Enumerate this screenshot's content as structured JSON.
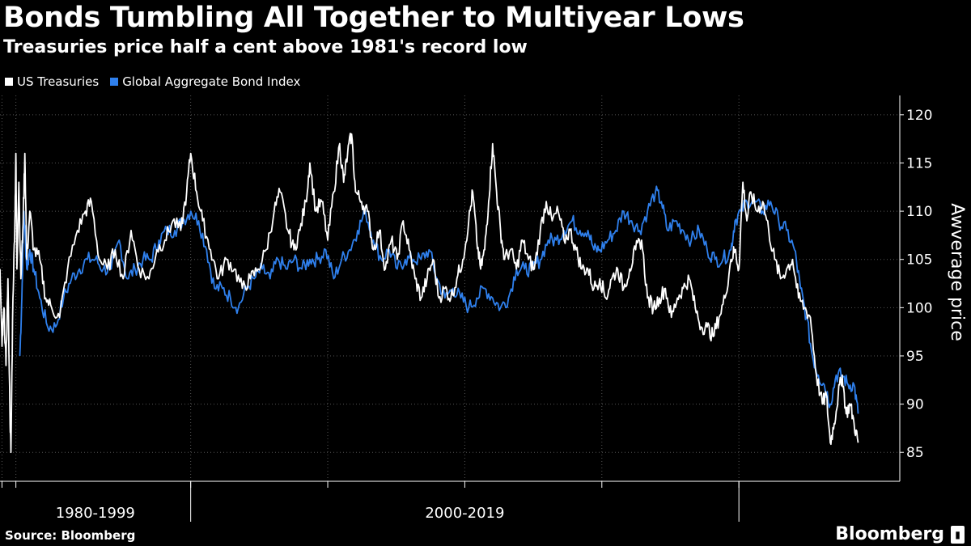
{
  "chart_data": {
    "type": "line",
    "title": "Bonds Tumbling All Together to Multiyear Lows",
    "subtitle": "Treasuries price half a cent above 1981's record low",
    "ylabel": "Awverage price",
    "xlabel": "",
    "ylim": [
      82,
      122
    ],
    "yticks": [
      85,
      90,
      95,
      100,
      105,
      110,
      115,
      120
    ],
    "xlim": [
      1978.0,
      2023.3
    ],
    "x_ticks_minor": [
      1978.1,
      1978.8,
      1987.6,
      1994.5,
      2001.4,
      2008.3,
      2015.2
    ],
    "x_ticks_major": [
      1987.6,
      2015.2
    ],
    "period_labels": [
      {
        "label": "1980-1999",
        "x": 1982.8
      },
      {
        "label": "2000-2019",
        "x": 2001.4
      }
    ],
    "grid": true,
    "legend_position": "top-left",
    "series": [
      {
        "name": "US Treasuries",
        "color": "#ffffff",
        "points": [
          [
            1978.0,
            104
          ],
          [
            1978.1,
            96
          ],
          [
            1978.2,
            100
          ],
          [
            1978.3,
            94
          ],
          [
            1978.4,
            103
          ],
          [
            1978.5,
            89
          ],
          [
            1978.55,
            85
          ],
          [
            1978.65,
            101
          ],
          [
            1978.75,
            109
          ],
          [
            1978.8,
            116
          ],
          [
            1978.85,
            104
          ],
          [
            1978.95,
            113
          ],
          [
            1979.05,
            103
          ],
          [
            1979.15,
            108
          ],
          [
            1979.25,
            116
          ],
          [
            1979.35,
            105
          ],
          [
            1979.5,
            110
          ],
          [
            1979.7,
            106
          ],
          [
            1980.0,
            105
          ],
          [
            1980.3,
            101
          ],
          [
            1980.6,
            100
          ],
          [
            1981.0,
            99
          ],
          [
            1981.4,
            104
          ],
          [
            1981.9,
            108
          ],
          [
            1982.3,
            110
          ],
          [
            1982.6,
            111
          ],
          [
            1983.0,
            105
          ],
          [
            1983.4,
            104
          ],
          [
            1983.8,
            106
          ],
          [
            1984.2,
            103
          ],
          [
            1984.6,
            108
          ],
          [
            1985.0,
            104
          ],
          [
            1985.5,
            103
          ],
          [
            1985.9,
            106
          ],
          [
            1986.3,
            107
          ],
          [
            1986.7,
            109
          ],
          [
            1987.1,
            108
          ],
          [
            1987.4,
            112
          ],
          [
            1987.6,
            116
          ],
          [
            1987.9,
            112
          ],
          [
            1988.2,
            109
          ],
          [
            1988.6,
            106
          ],
          [
            1989.0,
            103
          ],
          [
            1989.4,
            105
          ],
          [
            1989.8,
            104
          ],
          [
            1990.2,
            102
          ],
          [
            1990.6,
            103
          ],
          [
            1991.0,
            104
          ],
          [
            1991.4,
            106
          ],
          [
            1991.8,
            110
          ],
          [
            1992.1,
            112
          ],
          [
            1992.5,
            108
          ],
          [
            1992.8,
            106
          ],
          [
            1993.1,
            108
          ],
          [
            1993.4,
            111
          ],
          [
            1993.6,
            115
          ],
          [
            1993.9,
            110
          ],
          [
            1994.2,
            111
          ],
          [
            1994.5,
            107
          ],
          [
            1994.8,
            112
          ],
          [
            1995.1,
            117
          ],
          [
            1995.3,
            113
          ],
          [
            1995.5,
            116
          ],
          [
            1995.7,
            118
          ],
          [
            1995.9,
            112
          ],
          [
            1996.2,
            111
          ],
          [
            1996.5,
            110
          ],
          [
            1996.8,
            106
          ],
          [
            1997.1,
            108
          ],
          [
            1997.4,
            104
          ],
          [
            1997.7,
            107
          ],
          [
            1998.0,
            105
          ],
          [
            1998.3,
            109
          ],
          [
            1998.6,
            106
          ],
          [
            1998.9,
            103
          ],
          [
            1999.2,
            101
          ],
          [
            1999.5,
            103
          ],
          [
            1999.8,
            105
          ],
          [
            2000.1,
            101
          ],
          [
            2000.4,
            102
          ],
          [
            2000.7,
            101
          ],
          [
            2001.0,
            103
          ],
          [
            2001.3,
            105
          ],
          [
            2001.6,
            109
          ],
          [
            2001.8,
            112
          ],
          [
            2002.0,
            107
          ],
          [
            2002.2,
            104
          ],
          [
            2002.4,
            106
          ],
          [
            2002.6,
            111
          ],
          [
            2002.8,
            117
          ],
          [
            2003.0,
            112
          ],
          [
            2003.2,
            108
          ],
          [
            2003.4,
            105
          ],
          [
            2003.7,
            106
          ],
          [
            2004.0,
            104
          ],
          [
            2004.3,
            107
          ],
          [
            2004.6,
            105
          ],
          [
            2004.9,
            104
          ],
          [
            2005.2,
            108
          ],
          [
            2005.5,
            111
          ],
          [
            2005.8,
            109
          ],
          [
            2006.1,
            110
          ],
          [
            2006.4,
            107
          ],
          [
            2006.7,
            108
          ],
          [
            2007.0,
            106
          ],
          [
            2007.3,
            104
          ],
          [
            2007.6,
            104
          ],
          [
            2007.9,
            102
          ],
          [
            2008.2,
            103
          ],
          [
            2008.5,
            101
          ],
          [
            2008.8,
            103
          ],
          [
            2009.1,
            104
          ],
          [
            2009.4,
            102
          ],
          [
            2009.7,
            104
          ],
          [
            2010.0,
            106
          ],
          [
            2010.3,
            107
          ],
          [
            2010.6,
            101
          ],
          [
            2010.9,
            100
          ],
          [
            2011.2,
            101
          ],
          [
            2011.5,
            102
          ],
          [
            2011.8,
            99
          ],
          [
            2012.1,
            101
          ],
          [
            2012.4,
            102
          ],
          [
            2012.7,
            103
          ],
          [
            2013.0,
            100
          ],
          [
            2013.3,
            98
          ],
          [
            2013.6,
            98
          ],
          [
            2013.9,
            97
          ],
          [
            2014.2,
            99
          ],
          [
            2014.5,
            101
          ],
          [
            2014.8,
            105
          ],
          [
            2015.0,
            106
          ],
          [
            2015.2,
            104
          ],
          [
            2015.4,
            113
          ],
          [
            2015.6,
            109
          ],
          [
            2015.8,
            112
          ],
          [
            2016.1,
            110
          ],
          [
            2016.4,
            111
          ],
          [
            2016.7,
            108
          ],
          [
            2017.0,
            105
          ],
          [
            2017.3,
            103
          ],
          [
            2017.6,
            104
          ],
          [
            2017.9,
            105
          ],
          [
            2018.2,
            101
          ],
          [
            2018.5,
            100
          ],
          [
            2018.8,
            99
          ],
          [
            2019.1,
            93
          ],
          [
            2019.4,
            90
          ],
          [
            2019.6,
            91
          ],
          [
            2019.8,
            86
          ],
          [
            2020.0,
            88
          ],
          [
            2020.2,
            91
          ],
          [
            2020.4,
            93
          ],
          [
            2020.6,
            89
          ],
          [
            2020.8,
            90
          ],
          [
            2021.0,
            88
          ],
          [
            2021.2,
            86
          ]
        ]
      },
      {
        "name": "Global Aggregate Bond Index",
        "color": "#2f80ed",
        "points": [
          [
            1979.0,
            95
          ],
          [
            1979.1,
            101
          ],
          [
            1979.2,
            110
          ],
          [
            1979.35,
            104
          ],
          [
            1979.5,
            106
          ],
          [
            1979.7,
            104
          ],
          [
            1980.0,
            101
          ],
          [
            1980.4,
            98
          ],
          [
            1980.8,
            98
          ],
          [
            1981.2,
            101
          ],
          [
            1981.6,
            103
          ],
          [
            1982.0,
            104
          ],
          [
            1982.4,
            105
          ],
          [
            1982.8,
            105
          ],
          [
            1983.2,
            104
          ],
          [
            1983.6,
            104
          ],
          [
            1984.0,
            107
          ],
          [
            1984.4,
            103
          ],
          [
            1984.8,
            104
          ],
          [
            1985.2,
            105
          ],
          [
            1985.6,
            105
          ],
          [
            1986.0,
            107
          ],
          [
            1986.4,
            108
          ],
          [
            1986.8,
            108
          ],
          [
            1987.2,
            109
          ],
          [
            1987.6,
            110
          ],
          [
            1988.0,
            109
          ],
          [
            1988.4,
            106
          ],
          [
            1988.8,
            102
          ],
          [
            1989.2,
            102
          ],
          [
            1989.6,
            101
          ],
          [
            1990.0,
            100
          ],
          [
            1990.4,
            102
          ],
          [
            1990.8,
            103
          ],
          [
            1991.2,
            104
          ],
          [
            1991.6,
            103
          ],
          [
            1992.0,
            105
          ],
          [
            1992.4,
            104
          ],
          [
            1992.8,
            105
          ],
          [
            1993.2,
            104
          ],
          [
            1993.6,
            105
          ],
          [
            1994.0,
            105
          ],
          [
            1994.4,
            106
          ],
          [
            1994.8,
            103
          ],
          [
            1995.2,
            105
          ],
          [
            1995.6,
            106
          ],
          [
            1996.0,
            108
          ],
          [
            1996.4,
            110
          ],
          [
            1996.8,
            107
          ],
          [
            1997.2,
            105
          ],
          [
            1997.6,
            106
          ],
          [
            1998.0,
            104
          ],
          [
            1998.4,
            105
          ],
          [
            1998.8,
            105
          ],
          [
            1999.2,
            105
          ],
          [
            1999.6,
            106
          ],
          [
            2000.0,
            103
          ],
          [
            2000.4,
            101
          ],
          [
            2000.8,
            102
          ],
          [
            2001.2,
            101
          ],
          [
            2001.6,
            100
          ],
          [
            2002.0,
            101
          ],
          [
            2002.4,
            102
          ],
          [
            2002.8,
            101
          ],
          [
            2003.2,
            100
          ],
          [
            2003.6,
            101
          ],
          [
            2004.0,
            104
          ],
          [
            2004.4,
            104
          ],
          [
            2004.8,
            104
          ],
          [
            2005.2,
            105
          ],
          [
            2005.6,
            107
          ],
          [
            2006.0,
            107
          ],
          [
            2006.4,
            108
          ],
          [
            2006.8,
            109
          ],
          [
            2007.2,
            108
          ],
          [
            2007.6,
            108
          ],
          [
            2007.9,
            106
          ],
          [
            2008.2,
            106
          ],
          [
            2008.6,
            107
          ],
          [
            2009.0,
            108
          ],
          [
            2009.4,
            110
          ],
          [
            2009.8,
            109
          ],
          [
            2010.2,
            108
          ],
          [
            2010.6,
            110
          ],
          [
            2011.0,
            112
          ],
          [
            2011.3,
            111
          ],
          [
            2011.6,
            108
          ],
          [
            2012.0,
            109
          ],
          [
            2012.4,
            108
          ],
          [
            2012.8,
            107
          ],
          [
            2013.2,
            108
          ],
          [
            2013.6,
            106
          ],
          [
            2014.0,
            105
          ],
          [
            2014.4,
            105
          ],
          [
            2014.8,
            106
          ],
          [
            2015.0,
            109
          ],
          [
            2015.3,
            110
          ],
          [
            2015.6,
            111
          ],
          [
            2016.0,
            111
          ],
          [
            2016.4,
            110
          ],
          [
            2016.8,
            111
          ],
          [
            2017.2,
            109
          ],
          [
            2017.6,
            108
          ],
          [
            2018.0,
            106
          ],
          [
            2018.3,
            102
          ],
          [
            2018.6,
            99
          ],
          [
            2018.9,
            95
          ],
          [
            2019.2,
            93
          ],
          [
            2019.5,
            92
          ],
          [
            2019.8,
            90
          ],
          [
            2020.1,
            93
          ],
          [
            2020.4,
            93
          ],
          [
            2020.7,
            92
          ],
          [
            2021.0,
            92
          ],
          [
            2021.2,
            89
          ]
        ]
      }
    ]
  },
  "legend": {
    "items": [
      {
        "label": "US Treasuries",
        "color": "#ffffff"
      },
      {
        "label": "Global Aggregate Bond Index",
        "color": "#2f80ed"
      }
    ]
  },
  "footer": {
    "source": "Source: Bloomberg",
    "brand": "Bloomberg",
    "brand_mark_icon": "bloomberg-terminal-icon"
  }
}
